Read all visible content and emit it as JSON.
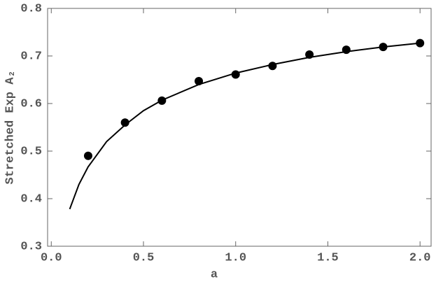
{
  "chart_data": {
    "type": "scatter",
    "x_label": "a",
    "y_label": "Stretched Exp A₂",
    "xlim": [
      -0.02,
      2.06
    ],
    "ylim": [
      0.3,
      0.8
    ],
    "xticks": [
      {
        "value": 0,
        "label": "0.0"
      },
      0.5,
      {
        "value": 1,
        "label": "1.0"
      },
      1.5,
      {
        "value": 2,
        "label": "2.0"
      }
    ],
    "yticks": [
      0.3,
      0.4,
      0.5,
      0.6,
      0.7,
      0.8
    ],
    "series": [
      {
        "style": "markers",
        "color": "#000000",
        "x": [
          0.2,
          0.4,
          0.6,
          0.8,
          1.0,
          1.2,
          1.4,
          1.6,
          1.8,
          2.0
        ],
        "values": [
          0.49,
          0.56,
          0.606,
          0.647,
          0.661,
          0.679,
          0.703,
          0.713,
          0.719,
          0.727
        ]
      },
      {
        "style": "line",
        "color": "#000000",
        "x": [
          0.1,
          0.15,
          0.2,
          0.3,
          0.4,
          0.5,
          0.6,
          0.8,
          1.0,
          1.2,
          1.4,
          1.6,
          1.8,
          2.0
        ],
        "values": [
          0.378,
          0.43,
          0.467,
          0.52,
          0.555,
          0.585,
          0.607,
          0.64,
          0.664,
          0.682,
          0.697,
          0.709,
          0.719,
          0.727
        ]
      }
    ]
  }
}
